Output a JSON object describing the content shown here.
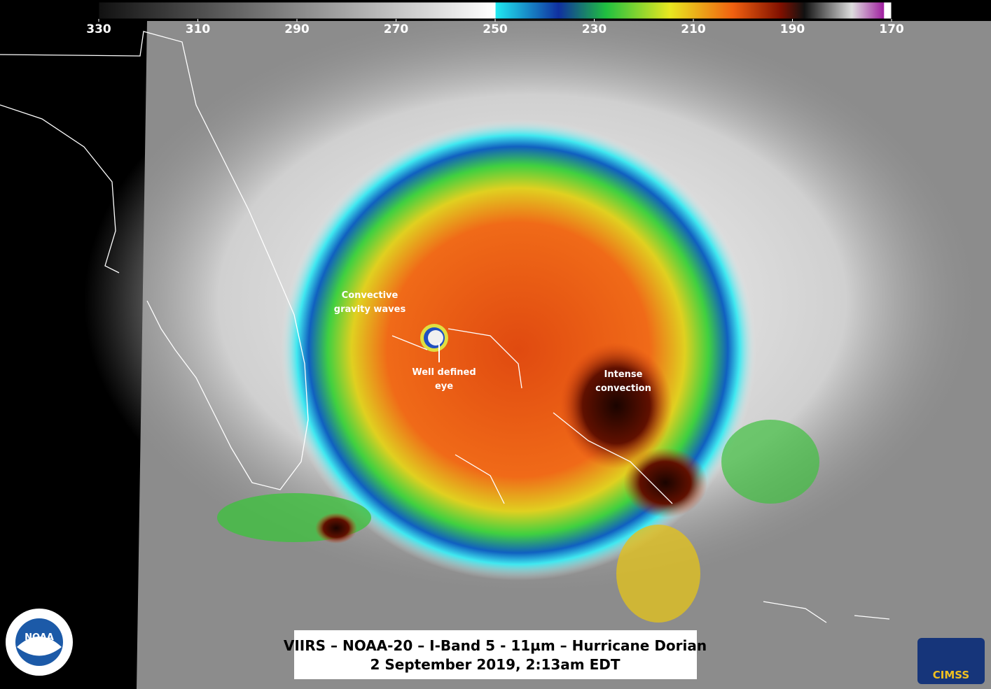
{
  "colorbar": {
    "lim": [
      330,
      170
    ],
    "ticks": [
      330,
      310,
      290,
      270,
      250,
      230,
      210,
      190,
      170
    ]
  },
  "annotations": [
    {
      "lines": [
        "Convective",
        "gravity waves"
      ]
    },
    {
      "lines": [
        "Well defined",
        "eye"
      ]
    },
    {
      "lines": [
        "Intense",
        "convection"
      ]
    }
  ],
  "title": {
    "lines": [
      "VIIRS – NOAA-20 – I-Band 5 - 11µm – Hurricane Dorian",
      "2 September 2019, 2:13am EDT"
    ]
  },
  "logos": {
    "left": "NOAA",
    "right": "CIMSS"
  }
}
